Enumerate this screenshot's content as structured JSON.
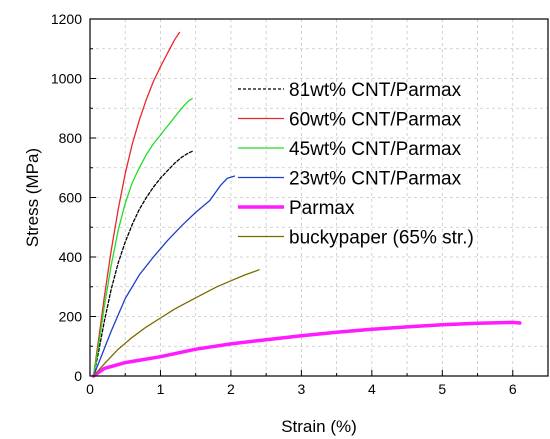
{
  "chart_data": {
    "type": "line",
    "title": "",
    "xlabel": "Strain (%)",
    "ylabel": "Stress (MPa)",
    "xlim": [
      0,
      6.5
    ],
    "ylim": [
      0,
      1200
    ],
    "x_ticks": [
      0,
      1,
      2,
      3,
      4,
      5,
      6
    ],
    "y_ticks": [
      0,
      200,
      400,
      600,
      800,
      1000,
      1200
    ],
    "x_tick_labels": [
      "0",
      "1",
      "2",
      "3",
      "4",
      "5",
      "6"
    ],
    "y_tick_labels": [
      "0",
      "200",
      "400",
      "600",
      "800",
      "1000",
      "1200"
    ],
    "grid": true,
    "legend_position": "top-right",
    "series": [
      {
        "name": "81wt% CNT/Parmax",
        "color": "#000000",
        "dash": true,
        "points": [
          [
            0.05,
            0
          ],
          [
            0.12,
            80
          ],
          [
            0.2,
            180
          ],
          [
            0.3,
            290
          ],
          [
            0.4,
            380
          ],
          [
            0.5,
            450
          ],
          [
            0.6,
            510
          ],
          [
            0.7,
            560
          ],
          [
            0.8,
            600
          ],
          [
            0.9,
            635
          ],
          [
            1.0,
            665
          ],
          [
            1.1,
            690
          ],
          [
            1.2,
            715
          ],
          [
            1.3,
            735
          ],
          [
            1.4,
            750
          ],
          [
            1.45,
            755
          ]
        ]
      },
      {
        "name": "60wt% CNT/Parmax",
        "color": "#e8282c",
        "dash": false,
        "points": [
          [
            0.05,
            0
          ],
          [
            0.12,
            120
          ],
          [
            0.2,
            260
          ],
          [
            0.3,
            420
          ],
          [
            0.4,
            560
          ],
          [
            0.5,
            680
          ],
          [
            0.6,
            780
          ],
          [
            0.7,
            860
          ],
          [
            0.8,
            930
          ],
          [
            0.9,
            990
          ],
          [
            1.0,
            1040
          ],
          [
            1.1,
            1085
          ],
          [
            1.2,
            1130
          ],
          [
            1.27,
            1155
          ]
        ]
      },
      {
        "name": "45wt% CNT/Parmax",
        "color": "#22dd22",
        "dash": false,
        "points": [
          [
            0.05,
            0
          ],
          [
            0.12,
            100
          ],
          [
            0.2,
            230
          ],
          [
            0.3,
            370
          ],
          [
            0.4,
            490
          ],
          [
            0.5,
            580
          ],
          [
            0.6,
            650
          ],
          [
            0.7,
            700
          ],
          [
            0.8,
            745
          ],
          [
            0.9,
            780
          ],
          [
            1.0,
            810
          ],
          [
            1.1,
            840
          ],
          [
            1.2,
            870
          ],
          [
            1.3,
            900
          ],
          [
            1.4,
            925
          ],
          [
            1.45,
            932
          ]
        ]
      },
      {
        "name": "23wt% CNT/Parmax",
        "color": "#1a3fcc",
        "dash": false,
        "points": [
          [
            0.05,
            0
          ],
          [
            0.15,
            60
          ],
          [
            0.3,
            150
          ],
          [
            0.5,
            260
          ],
          [
            0.7,
            340
          ],
          [
            0.9,
            400
          ],
          [
            1.1,
            455
          ],
          [
            1.3,
            505
          ],
          [
            1.5,
            550
          ],
          [
            1.7,
            590
          ],
          [
            1.85,
            640
          ],
          [
            1.95,
            665
          ],
          [
            2.05,
            672
          ]
        ]
      },
      {
        "name": "Parmax",
        "color": "#ff1aff",
        "dash": false,
        "width": 3.5,
        "points": [
          [
            0.05,
            0
          ],
          [
            0.2,
            25
          ],
          [
            0.5,
            45
          ],
          [
            1.0,
            65
          ],
          [
            1.5,
            90
          ],
          [
            2.0,
            108
          ],
          [
            2.5,
            122
          ],
          [
            3.0,
            135
          ],
          [
            3.5,
            147
          ],
          [
            4.0,
            157
          ],
          [
            4.5,
            165
          ],
          [
            5.0,
            172
          ],
          [
            5.5,
            177
          ],
          [
            6.0,
            180
          ],
          [
            6.1,
            178
          ]
        ]
      },
      {
        "name": "buckypaper (65% str.)",
        "color": "#7a6a00",
        "dash": false,
        "points": [
          [
            0.05,
            0
          ],
          [
            0.2,
            40
          ],
          [
            0.4,
            90
          ],
          [
            0.6,
            130
          ],
          [
            0.8,
            165
          ],
          [
            1.0,
            195
          ],
          [
            1.2,
            225
          ],
          [
            1.4,
            250
          ],
          [
            1.6,
            275
          ],
          [
            1.8,
            300
          ],
          [
            2.0,
            320
          ],
          [
            2.2,
            340
          ],
          [
            2.4,
            357
          ]
        ]
      }
    ]
  }
}
